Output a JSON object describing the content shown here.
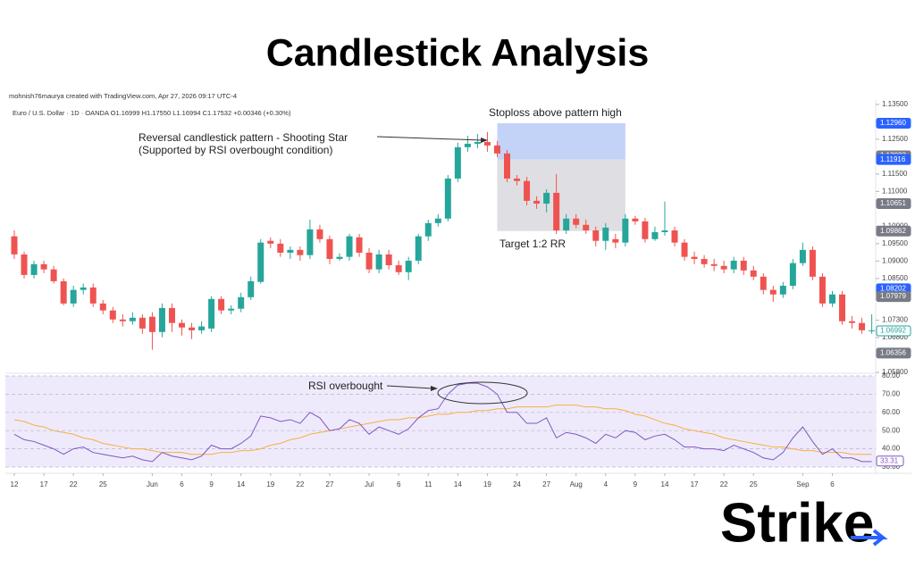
{
  "title": "Candlestick Analysis",
  "logo": "Strike",
  "chart_data": {
    "type": "candlestick",
    "credit": "mohnish76maurya created with TradingView.com, Apr 27, 2026 09:17 UTC-4",
    "symbol_info": "Euro / U.S. Dollar · 1D · OANDA  O1.16999 H1.17550 L1.16994 C1.17532 +0.00346 (+0.30%)",
    "pattern_note": [
      "Reversal candlestick pattern - Shooting Star",
      "(Supported by RSI overbought condition)"
    ],
    "stoploss_note": "Stoploss above pattern high",
    "target_note": "Target 1:2 RR",
    "rsi_note": "RSI overbought",
    "up_color": "#26a69a",
    "down_color": "#ef5350",
    "open": [
      1.0971,
      1.0919,
      1.086,
      1.0891,
      1.0876,
      1.0842,
      1.0778,
      1.0817,
      1.0824,
      1.0778,
      1.0758,
      1.0732,
      1.0727,
      1.0737,
      1.074,
      1.0696,
      1.0765,
      1.0722,
      1.0709,
      1.0701,
      1.0706,
      1.0791,
      1.0758,
      1.0763,
      1.0796,
      1.084,
      1.0958,
      1.095,
      1.0924,
      1.0932,
      1.0917,
      1.0991,
      1.0963,
      1.0906,
      1.0912,
      1.0968,
      1.0924,
      1.0876,
      1.0919,
      1.0888,
      1.0868,
      1.0901,
      1.0971,
      1.1009,
      1.1022,
      1.1137,
      1.1227,
      1.1237,
      1.1242,
      1.1232,
      1.1209,
      1.1137,
      1.113,
      1.1073,
      1.1065,
      1.1096,
      1.0988,
      1.1022,
      1.1004,
      1.0988,
      1.0958,
      1.0963,
      1.0953,
      1.1022,
      1.1014,
      1.0963,
      1.0983,
      1.0988,
      1.0953,
      1.0912,
      1.0906,
      1.0891,
      1.0886,
      1.0876,
      1.0901,
      1.0873,
      1.0855,
      1.0817,
      1.0804,
      1.0829,
      1.0894,
      1.0932,
      1.0855,
      1.0778,
      1.0804,
      1.0727,
      1.0722,
      1.0701
    ],
    "high": [
      1.0988,
      1.0927,
      1.0901,
      1.0901,
      1.0886,
      1.085,
      1.0829,
      1.0835,
      1.0835,
      1.0788,
      1.0768,
      1.0747,
      1.0753,
      1.0747,
      1.0753,
      1.0778,
      1.0778,
      1.0732,
      1.0722,
      1.0727,
      1.0799,
      1.0799,
      1.0773,
      1.0809,
      1.0855,
      1.0963,
      1.0968,
      1.0963,
      1.0942,
      1.0942,
      1.1019,
      1.1004,
      1.0973,
      1.0922,
      1.0978,
      1.0978,
      1.0937,
      1.0932,
      1.0932,
      1.0901,
      1.0912,
      1.0978,
      1.1019,
      1.1035,
      1.1147,
      1.124,
      1.126,
      1.1265,
      1.1271,
      1.1245,
      1.1219,
      1.1147,
      1.1142,
      1.1086,
      1.1106,
      1.115,
      1.1035,
      1.1035,
      1.1019,
      1.0999,
      1.1009,
      1.0978,
      1.1035,
      1.103,
      1.1024,
      1.0999,
      1.1071,
      1.0999,
      1.0963,
      1.0927,
      1.0917,
      1.0906,
      1.0901,
      1.0912,
      1.0912,
      1.0886,
      1.0865,
      1.0829,
      1.084,
      1.0906,
      1.0953,
      1.0942,
      1.0865,
      1.0814,
      1.0814,
      1.0742,
      1.0737,
      1.0747
    ],
    "low": [
      1.0906,
      1.085,
      1.085,
      1.0865,
      1.0835,
      1.0773,
      1.0768,
      1.0804,
      1.0768,
      1.0747,
      1.0722,
      1.0712,
      1.0717,
      1.0691,
      1.0645,
      1.0681,
      1.0696,
      1.0686,
      1.0676,
      1.0691,
      1.0696,
      1.0747,
      1.0747,
      1.0753,
      1.0788,
      1.0835,
      1.0937,
      1.0912,
      1.0906,
      1.0901,
      1.0906,
      1.0953,
      1.0891,
      1.0901,
      1.0901,
      1.0912,
      1.0865,
      1.0865,
      1.0876,
      1.086,
      1.0845,
      1.0891,
      1.0958,
      1.0999,
      1.1014,
      1.1127,
      1.1214,
      1.1224,
      1.1214,
      1.1199,
      1.1127,
      1.1117,
      1.106,
      1.105,
      1.104,
      1.0978,
      1.0978,
      1.0994,
      1.0978,
      1.0942,
      1.0932,
      1.0937,
      1.0942,
      1.1004,
      1.0953,
      1.0958,
      1.0973,
      1.0942,
      1.0901,
      1.0891,
      1.0881,
      1.0871,
      1.0865,
      1.0865,
      1.086,
      1.0845,
      1.0804,
      1.0783,
      1.0794,
      1.0819,
      1.0886,
      1.0845,
      1.0768,
      1.0768,
      1.0717,
      1.0706,
      1.0691,
      1.0691
    ],
    "close": [
      1.0919,
      1.086,
      1.0891,
      1.0876,
      1.0842,
      1.0778,
      1.0817,
      1.0824,
      1.0778,
      1.0758,
      1.0732,
      1.0727,
      1.0737,
      1.0706,
      1.0696,
      1.0765,
      1.0722,
      1.0709,
      1.0701,
      1.0712,
      1.0791,
      1.0758,
      1.0763,
      1.0796,
      1.0842,
      1.0953,
      1.095,
      1.0924,
      1.0932,
      1.0917,
      1.0991,
      1.0963,
      1.0906,
      1.0912,
      1.0971,
      1.0924,
      1.0876,
      1.0919,
      1.0888,
      1.0868,
      1.0901,
      1.0971,
      1.1009,
      1.1022,
      1.1137,
      1.1227,
      1.1237,
      1.1242,
      1.1232,
      1.1209,
      1.1137,
      1.113,
      1.1073,
      1.1065,
      1.1096,
      1.0988,
      1.1022,
      1.1004,
      1.0988,
      1.0958,
      1.0996,
      1.0953,
      1.1022,
      1.1014,
      1.0963,
      1.0983,
      1.0988,
      1.0953,
      1.0912,
      1.0906,
      1.0891,
      1.0886,
      1.0876,
      1.0901,
      1.0873,
      1.0855,
      1.0817,
      1.0804,
      1.0829,
      1.0894,
      1.0932,
      1.0855,
      1.0778,
      1.0804,
      1.0727,
      1.0722,
      1.0701,
      1.0701
    ],
    "ylim": [
      1.058,
      1.1355
    ],
    "yticks": [
      {
        "value": 1.135,
        "label": "1.13500"
      },
      {
        "value": 1.125,
        "label": "1.12500"
      },
      {
        "value": 1.115,
        "label": "1.11500"
      },
      {
        "value": 1.11,
        "label": "1.11000"
      },
      {
        "value": 1.1,
        "label": "1.10000"
      },
      {
        "value": 1.095,
        "label": "1.09500"
      },
      {
        "value": 1.09,
        "label": "1.09000"
      },
      {
        "value": 1.085,
        "label": "1.08500"
      },
      {
        "value": 1.073,
        "label": "1.07300"
      },
      {
        "value": 1.068,
        "label": "1.06800"
      },
      {
        "value": 1.058,
        "label": "1.05800"
      }
    ],
    "xticks": [
      {
        "value": 0,
        "label": "12"
      },
      {
        "value": 3,
        "label": "17"
      },
      {
        "value": 6,
        "label": "22"
      },
      {
        "value": 9,
        "label": "25"
      },
      {
        "value": 14,
        "label": "Jun"
      },
      {
        "value": 17,
        "label": "6"
      },
      {
        "value": 20,
        "label": "9"
      },
      {
        "value": 23,
        "label": "14"
      },
      {
        "value": 26,
        "label": "19"
      },
      {
        "value": 29,
        "label": "22"
      },
      {
        "value": 32,
        "label": "27"
      },
      {
        "value": 36,
        "label": "Jul"
      },
      {
        "value": 39,
        "label": "6"
      },
      {
        "value": 42,
        "label": "11"
      },
      {
        "value": 45,
        "label": "14"
      },
      {
        "value": 48,
        "label": "19"
      },
      {
        "value": 51,
        "label": "24"
      },
      {
        "value": 54,
        "label": "27"
      },
      {
        "value": 57,
        "label": "Aug"
      },
      {
        "value": 60,
        "label": "4"
      },
      {
        "value": 63,
        "label": "9"
      },
      {
        "value": 66,
        "label": "14"
      },
      {
        "value": 69,
        "label": "17"
      },
      {
        "value": 72,
        "label": "22"
      },
      {
        "value": 75,
        "label": "25"
      },
      {
        "value": 80,
        "label": "Sep"
      },
      {
        "value": 83,
        "label": "6"
      }
    ],
    "price_tags": [
      {
        "value": 1.1296,
        "label": "1.12960",
        "color": "#2962ff"
      },
      {
        "value": 1.12023,
        "label": "1.12023",
        "color": "#787b86"
      },
      {
        "value": 1.11916,
        "label": "1.11916",
        "color": "#2962ff"
      },
      {
        "value": 1.10651,
        "label": "1.10651",
        "color": "#787b86"
      },
      {
        "value": 1.09862,
        "label": "1.09862",
        "color": "#787b86"
      },
      {
        "value": 1.08202,
        "label": "1.08202",
        "color": "#2962ff"
      },
      {
        "value": 1.07979,
        "label": "1.07979",
        "color": "#787b86"
      },
      {
        "value": 1.06992,
        "label": "1.06992",
        "color": "#26a69a"
      },
      {
        "value": 1.06356,
        "label": "1.06356",
        "color": "#787b86"
      }
    ],
    "position": {
      "stop": 1.1296,
      "entry": 1.11916,
      "target": 1.09862,
      "start": 49,
      "end": 62,
      "stop_color": "#c3d2f7",
      "target_color": "#dcdce0"
    },
    "rsi": {
      "values": [
        48,
        45,
        44,
        42,
        40,
        37,
        40,
        41,
        38,
        37,
        36,
        35,
        36,
        34,
        33,
        38,
        36,
        35,
        34,
        36,
        42,
        40,
        40,
        43,
        47,
        58,
        57,
        55,
        56,
        54,
        60,
        57,
        50,
        51,
        56,
        54,
        48,
        52,
        50,
        48,
        51,
        57,
        61,
        62,
        70,
        75,
        76,
        76,
        74,
        70,
        60,
        60,
        54,
        54,
        57,
        46,
        49,
        48,
        46,
        43,
        48,
        46,
        50,
        49,
        45,
        47,
        48,
        45,
        41,
        41,
        40,
        40,
        39,
        42,
        40,
        38,
        35,
        34,
        38,
        46,
        52,
        44,
        37,
        40,
        35,
        35,
        33,
        33
      ],
      "color": "#7e57c2",
      "ma_values": [
        56,
        55,
        53,
        52,
        50,
        49,
        48,
        46,
        45,
        43,
        42,
        41,
        40,
        40,
        39,
        38,
        38,
        38,
        37,
        37,
        37,
        38,
        38,
        39,
        39,
        40,
        42,
        43,
        45,
        46,
        48,
        49,
        50,
        51,
        52,
        53,
        54,
        55,
        56,
        56,
        57,
        57,
        58,
        59,
        59,
        60,
        60,
        61,
        61,
        62,
        62,
        63,
        63,
        63,
        63,
        64,
        64,
        64,
        63,
        63,
        62,
        62,
        61,
        59,
        58,
        56,
        54,
        53,
        51,
        50,
        49,
        48,
        46,
        45,
        44,
        43,
        42,
        41,
        41,
        40,
        39,
        39,
        38,
        38,
        38,
        37,
        37,
        37
      ],
      "ma_color": "#f5b041",
      "band_color": "#efeafb",
      "ylim": [
        30,
        80
      ],
      "yticks": [
        {
          "value": 80,
          "label": "80.00"
        },
        {
          "value": 70,
          "label": "70.00"
        },
        {
          "value": 60,
          "label": "60.00"
        },
        {
          "value": 50,
          "label": "50.00"
        },
        {
          "value": 40,
          "label": "40.00"
        },
        {
          "value": 30,
          "label": "30.00"
        }
      ],
      "value_tag": 33.31
    }
  }
}
